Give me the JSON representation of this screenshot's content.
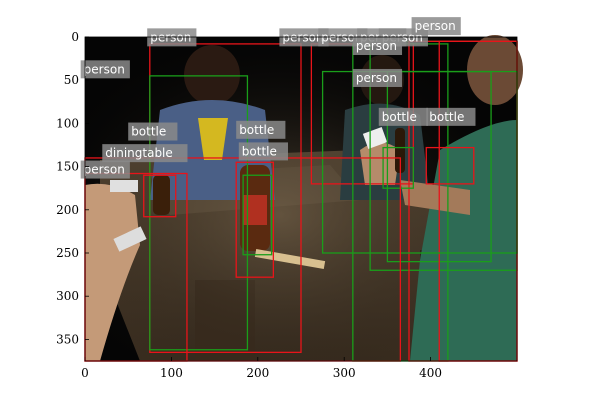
{
  "image": {
    "width": 500,
    "height": 375,
    "scene": "People playing dominoes at night around a wooden dining table with beer bottles"
  },
  "axes": {
    "xlim": [
      0,
      500
    ],
    "ylim": [
      375,
      0
    ],
    "xticks": [
      0,
      100,
      200,
      300,
      400
    ],
    "yticks": [
      0,
      50,
      100,
      150,
      200,
      250,
      300,
      350
    ]
  },
  "colors": {
    "red_box": "#e8141a",
    "green_box": "#1a9e1a",
    "label_bg": "#8a8a8a"
  },
  "detections": [
    {
      "label": "person",
      "color": "red",
      "x0": 75,
      "y0": 8,
      "x1": 250,
      "y1": 365,
      "tx": 72,
      "ty": -10
    },
    {
      "label": "person",
      "color": "green",
      "x0": 75,
      "y0": 45,
      "x1": 188,
      "y1": 362,
      "tx": -5,
      "ty": 27
    },
    {
      "label": "person",
      "color": "red",
      "x0": 0,
      "y0": 158,
      "x1": 118,
      "y1": 375,
      "tx": -5,
      "ty": 143
    },
    {
      "label": "person",
      "color": "red",
      "x0": 262,
      "y0": 8,
      "x1": 380,
      "y1": 170,
      "tx": 225,
      "ty": -10
    },
    {
      "label": "person",
      "color": "green",
      "x0": 310,
      "y0": 8,
      "x1": 420,
      "y1": 375,
      "tx": 270,
      "ty": -10
    },
    {
      "label": "person",
      "color": "green",
      "x0": 330,
      "y0": 5,
      "x1": 500,
      "y1": 270,
      "tx": 315,
      "ty": -10
    },
    {
      "label": "person",
      "color": "red",
      "x0": 375,
      "y0": 5,
      "x1": 500,
      "y1": 375,
      "tx": 340,
      "ty": -10
    },
    {
      "label": "person",
      "color": "green",
      "x0": 350,
      "y0": 40,
      "x1": 470,
      "y1": 260,
      "tx": 310,
      "ty": 0
    },
    {
      "label": "person",
      "color": "red",
      "x0": 410,
      "y0": 5,
      "x1": 500,
      "y1": 375,
      "tx": 378,
      "ty": -23
    },
    {
      "label": "person",
      "color": "green",
      "x0": 275,
      "y0": 40,
      "x1": 500,
      "y1": 250,
      "tx": 310,
      "ty": 37
    },
    {
      "label": "bottle",
      "color": "red",
      "x0": 68,
      "y0": 160,
      "x1": 105,
      "y1": 208,
      "tx": 50,
      "ty": 99
    },
    {
      "label": "bottle",
      "color": "red",
      "x0": 175,
      "y0": 145,
      "x1": 218,
      "y1": 278,
      "tx": 175,
      "ty": 97
    },
    {
      "label": "bottle",
      "color": "green",
      "x0": 183,
      "y0": 160,
      "x1": 216,
      "y1": 252,
      "tx": 178,
      "ty": 122
    },
    {
      "label": "bottle",
      "color": "green",
      "x0": 345,
      "y0": 128,
      "x1": 380,
      "y1": 175,
      "tx": 340,
      "ty": 82
    },
    {
      "label": "bottle",
      "color": "red",
      "x0": 395,
      "y0": 128,
      "x1": 450,
      "y1": 170,
      "tx": 395,
      "ty": 82
    },
    {
      "label": "diningtable",
      "color": "red",
      "x0": 0,
      "y0": 140,
      "x1": 365,
      "y1": 375,
      "tx": 20,
      "ty": 124
    }
  ]
}
